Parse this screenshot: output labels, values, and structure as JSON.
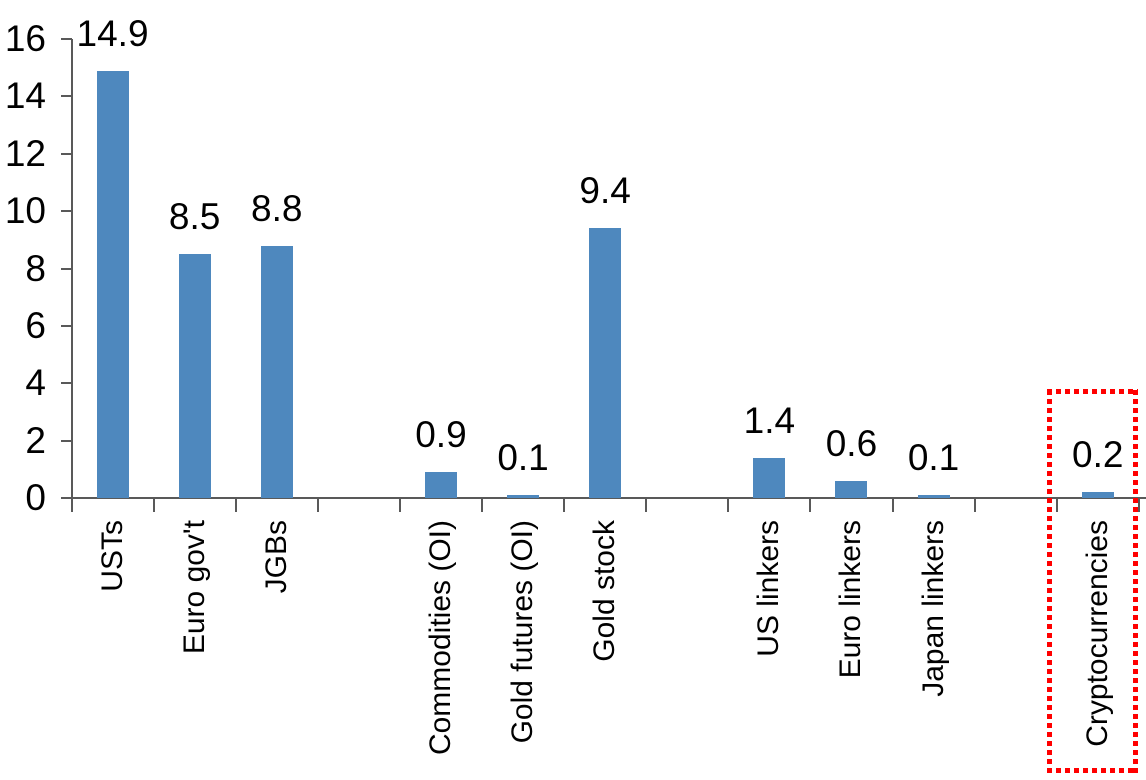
{
  "chart_data": {
    "type": "bar",
    "title": "",
    "xlabel": "",
    "ylabel": "",
    "categories": [
      "USTs",
      "Euro gov't",
      "JGBs",
      "Commodities (OI)",
      "Gold futures (OI)",
      "Gold stock",
      "US linkers",
      "Euro linkers",
      "Japan linkers",
      "Cryptocurrencies"
    ],
    "values": [
      14.9,
      8.5,
      8.8,
      0.9,
      0.1,
      9.4,
      1.4,
      0.6,
      0.1,
      0.2
    ],
    "value_labels": [
      "14.9",
      "8.5",
      "8.8",
      "0.9",
      "0.1",
      "9.4",
      "1.4",
      "0.6",
      "0.1",
      "0.2"
    ],
    "slot_of_bar": [
      0,
      1,
      2,
      4,
      5,
      6,
      8,
      9,
      10,
      12
    ],
    "num_slots": 13,
    "group_gaps_after": [
      "JGBs",
      "Gold stock",
      "Japan linkers"
    ],
    "ylim": [
      0,
      16
    ],
    "yticks": [
      0,
      2,
      4,
      6,
      8,
      10,
      12,
      14,
      16
    ],
    "grid": false,
    "legend": null,
    "bar_color": "#4E88BE",
    "axis_color": "#595959",
    "text_color": "#000000",
    "highlight_box": {
      "category": "Cryptocurrencies",
      "style": "dotted",
      "color": "#FF0000"
    }
  }
}
